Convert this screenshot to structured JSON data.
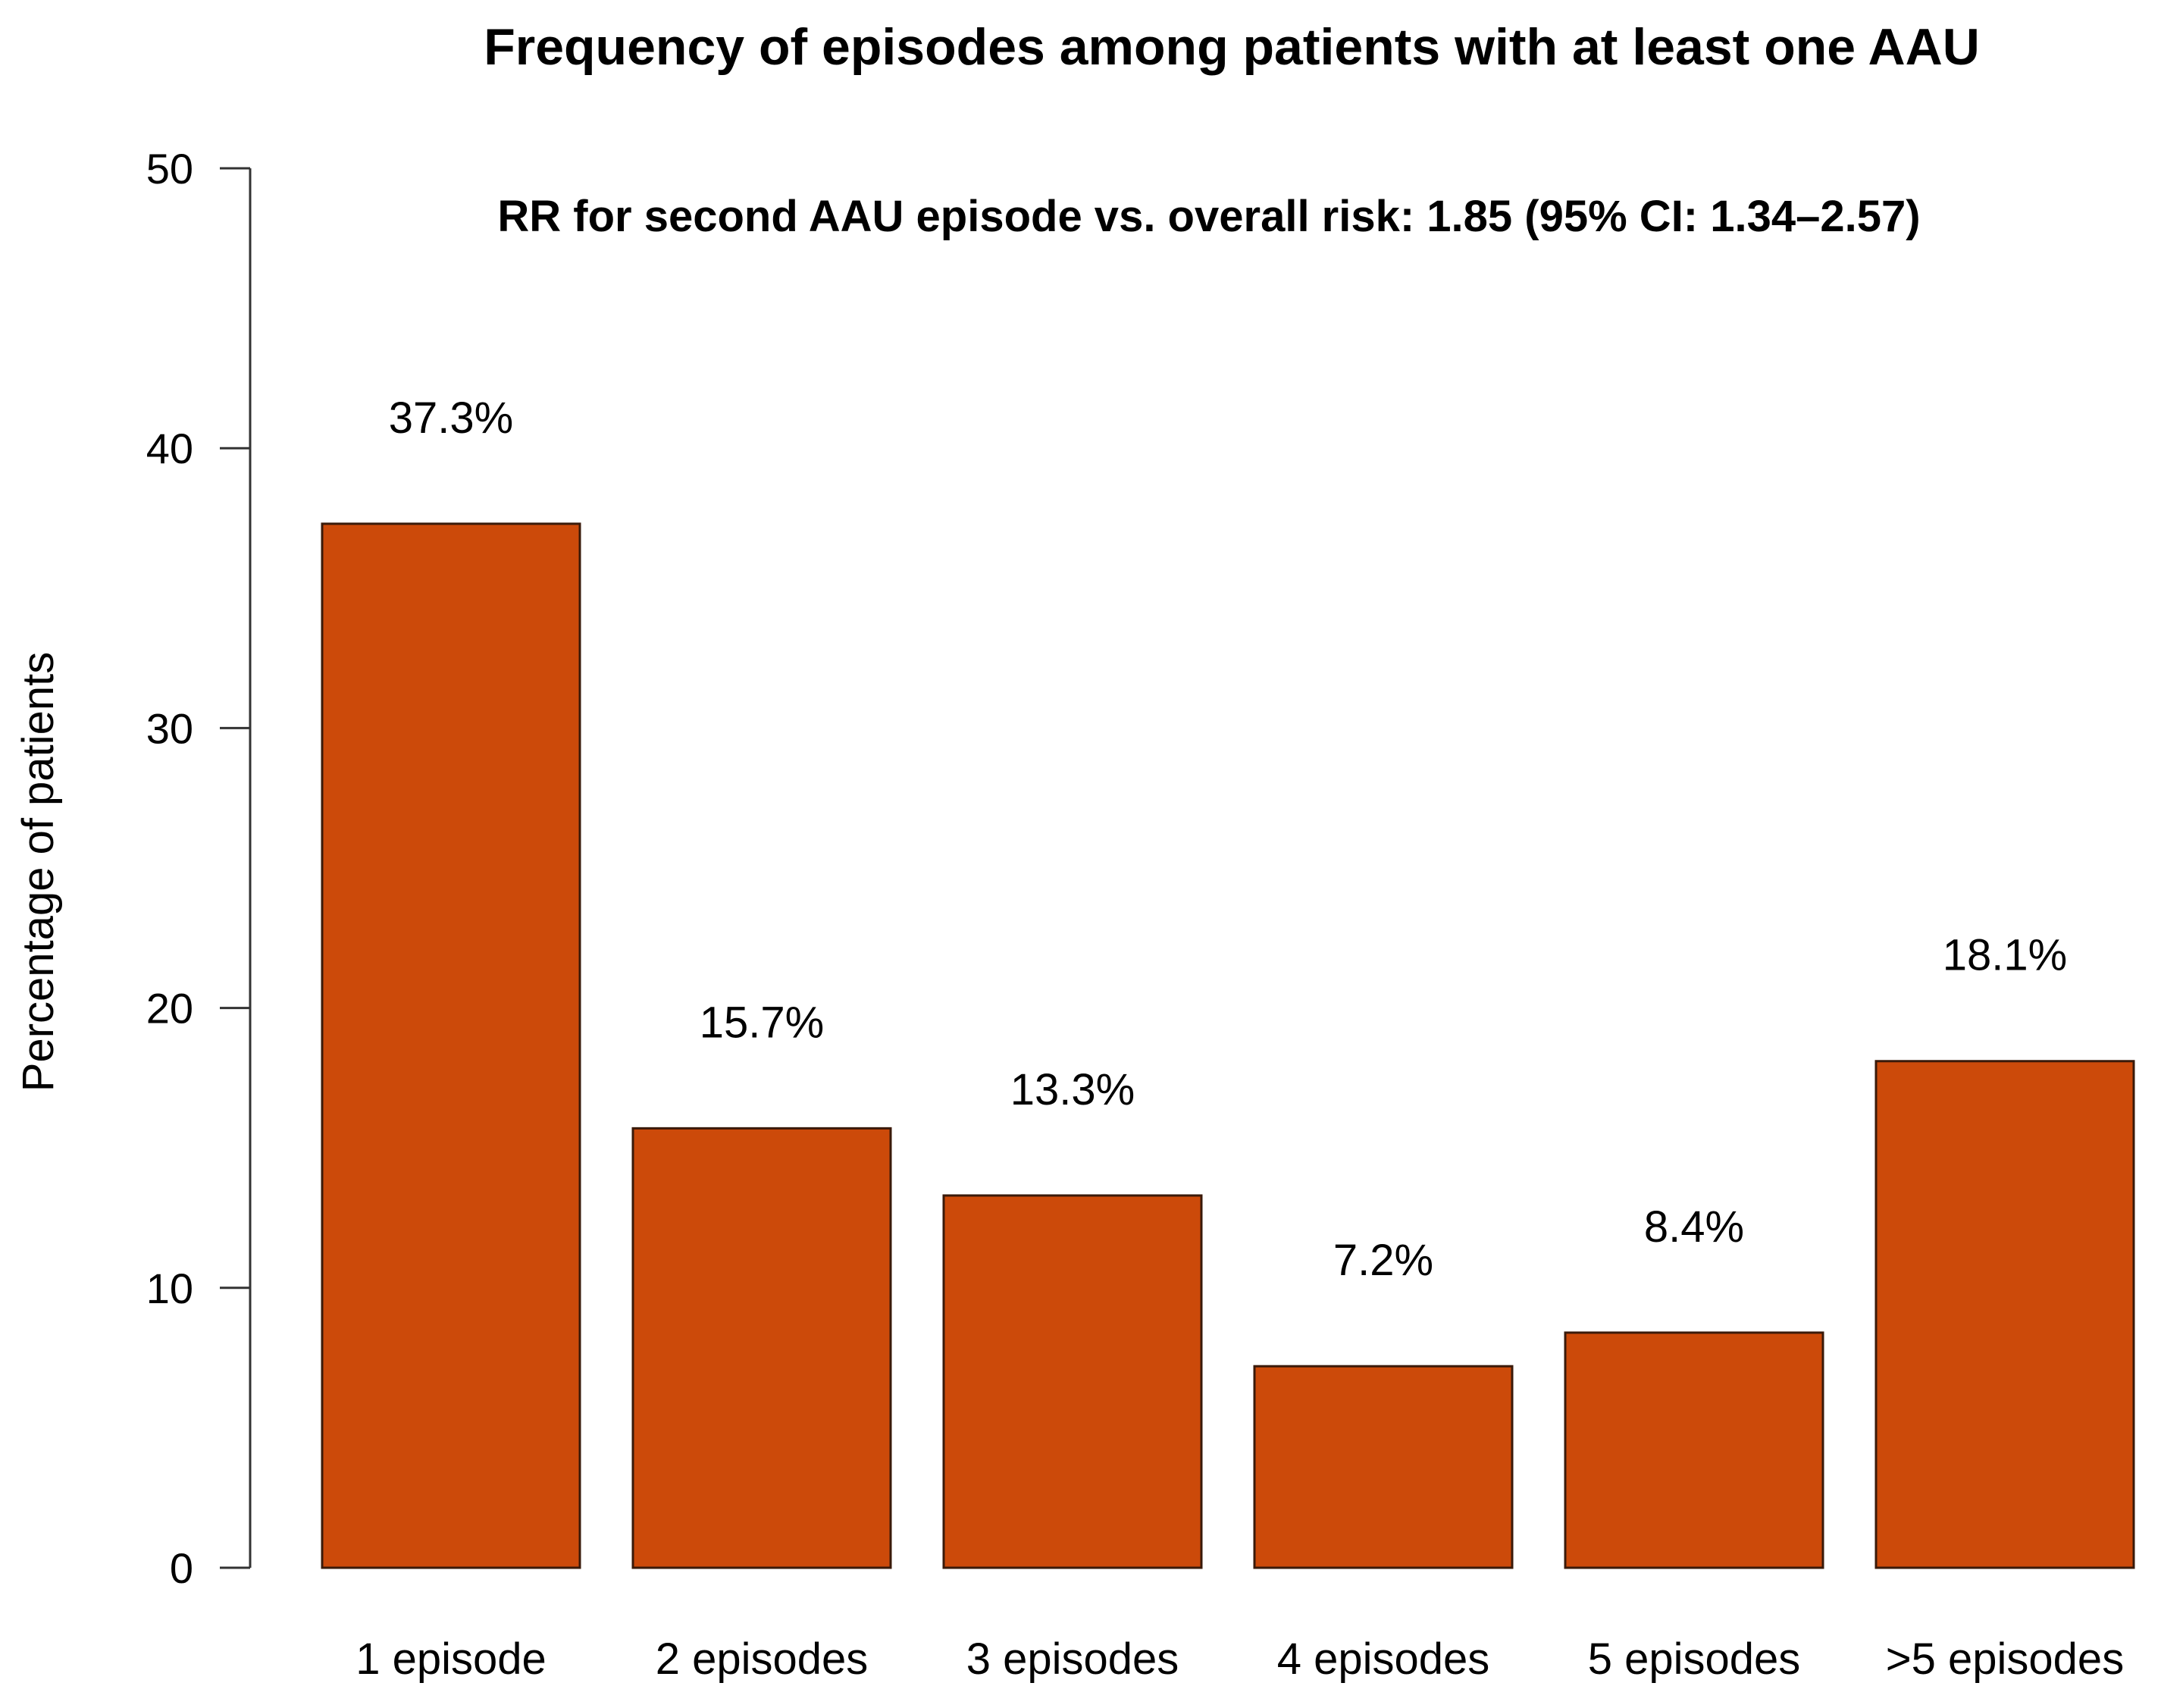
{
  "chart_data": {
    "type": "bar",
    "title": "Frequency of episodes among patients with at least one AAU",
    "annotation": "RR for second AAU episode vs. overall risk: 1.85 (95% CI: 1.34–2.57)",
    "xlabel": "",
    "ylabel": "Percentage of patients",
    "ylim": [
      0,
      50
    ],
    "yticks": [
      0,
      10,
      20,
      30,
      40,
      50
    ],
    "grid": false,
    "categories": [
      "1 episode",
      "2 episodes",
      "3 episodes",
      "4 episodes",
      "5 episodes",
      ">5 episodes"
    ],
    "values": [
      37.3,
      15.7,
      13.3,
      7.2,
      8.4,
      18.1
    ],
    "value_labels": [
      "37.3%",
      "15.7%",
      "13.3%",
      "7.2%",
      "8.4%",
      "18.1%"
    ],
    "bar_color": "#cc4a0a",
    "bar_edge_color": "#3a1a0a"
  }
}
